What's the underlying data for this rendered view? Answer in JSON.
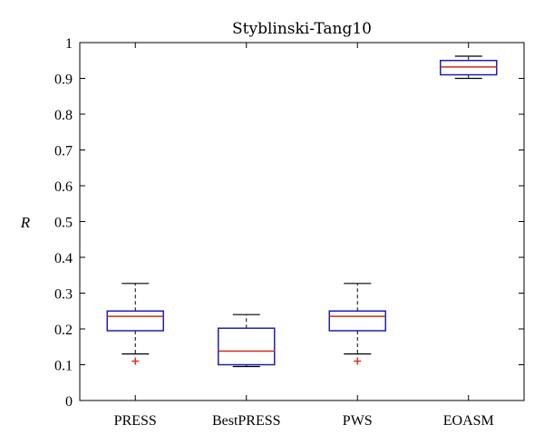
{
  "chart_data": {
    "type": "box",
    "title": "Styblinski-Tang10",
    "xlabel": "",
    "ylabel": "R",
    "ylim": [
      0,
      1
    ],
    "yticks": [
      0,
      0.1,
      0.2,
      0.3,
      0.4,
      0.5,
      0.6,
      0.7,
      0.8,
      0.9,
      1
    ],
    "ytick_labels": [
      "0",
      "0.1",
      "0.2",
      "0.3",
      "0.4",
      "0.5",
      "0.6",
      "0.7",
      "0.8",
      "0.9",
      "1"
    ],
    "grid": false,
    "categories": [
      "PRESS",
      "BestPRESS",
      "PWS",
      "EOASM"
    ],
    "boxes": [
      {
        "whisker_low": 0.13,
        "q1": 0.195,
        "median": 0.235,
        "q3": 0.25,
        "whisker_high": 0.327,
        "outliers": [
          0.11
        ]
      },
      {
        "whisker_low": 0.095,
        "q1": 0.1,
        "median": 0.138,
        "q3": 0.202,
        "whisker_high": 0.24,
        "outliers": []
      },
      {
        "whisker_low": 0.13,
        "q1": 0.195,
        "median": 0.235,
        "q3": 0.25,
        "whisker_high": 0.327,
        "outliers": [
          0.11
        ]
      },
      {
        "whisker_low": 0.9,
        "q1": 0.91,
        "median": 0.932,
        "q3": 0.95,
        "whisker_high": 0.962,
        "outliers": []
      }
    ],
    "colors": {
      "box": "#1f1fb4",
      "median": "#d42a1a",
      "whisker": "#000000",
      "outlier": "#e8301c",
      "axis": "#000000"
    }
  }
}
